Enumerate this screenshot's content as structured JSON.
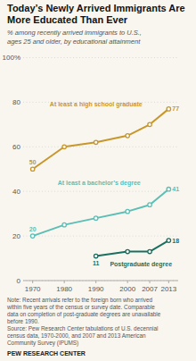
{
  "chart_data": {
    "type": "line",
    "title": "Today’s Newly Arrived Immigrants Are More Educated Than Ever",
    "subtitle": "% among recently arrived immigrants to U.S.,\nages 25 and older, by educational attainment",
    "note": "Note: Recent arrivals refer to the foreign born who arrived\nwithin five years of the census or survey date. Comparable\ndata on completion of post-graduate degrees are unavailable\nbefore 1990.\nSource: Pew Research Center tabulations of U.S. decennial\ncensus data, 1970-2000, and 2007 and 2013 American\nCommunity Survey (IPUMS)",
    "footer": "PEW RESEARCH CENTER",
    "x": [
      1970,
      1980,
      1990,
      2000,
      2007,
      2013
    ],
    "xlim": [
      1967,
      2016
    ],
    "xticks": [
      1970,
      1980,
      1990,
      2000,
      2007,
      2013
    ],
    "ylim": [
      0,
      100
    ],
    "yticks": [
      0,
      20,
      40,
      60,
      80,
      {
        "value": 100,
        "label": "100%"
      }
    ],
    "grid": true,
    "marker": "circle",
    "series": [
      {
        "name": "At least a high school graduate",
        "color": "#C8972B",
        "values": [
          50,
          60,
          62,
          65,
          70,
          77
        ],
        "value_labels": [
          "50",
          null,
          null,
          null,
          null,
          "77"
        ]
      },
      {
        "name": "At least a bachelor’s degree",
        "color": "#5BBFB5",
        "values": [
          20,
          25,
          28,
          31,
          34,
          41
        ],
        "value_labels": [
          "20",
          null,
          null,
          null,
          null,
          "41"
        ]
      },
      {
        "name": "Postgraduate degree",
        "color": "#1A7060",
        "values": [
          null,
          null,
          11,
          13,
          13,
          18
        ],
        "value_labels": [
          null,
          null,
          "11",
          null,
          null,
          "18"
        ]
      }
    ]
  }
}
